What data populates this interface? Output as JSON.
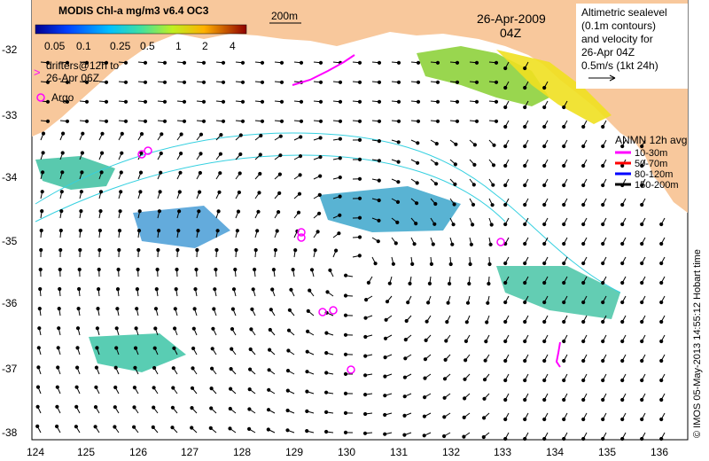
{
  "colorbar": {
    "title": "MODIS Chl-a mg/m3 v6.4 OC3",
    "ticks": [
      "0.05",
      "0.1",
      "0.25",
      "0.5",
      "1",
      "2",
      "4"
    ]
  },
  "legend_top_left": {
    "drifters_line1": "drifters@12h to",
    "drifters_line2": "26-Apr 06Z",
    "argo_label": "Argo",
    "depth_contour_label": "200m"
  },
  "timestamp": {
    "date": "26-Apr-2009",
    "time": "04Z"
  },
  "altimetry_note": {
    "line1": "Altimetric sealevel",
    "line2": "(0.1m contours)",
    "line3": "and velocity for",
    "line4": "26-Apr 04Z",
    "line5": "0.5m/s (1kt 24h)"
  },
  "anmn_legend": {
    "title": "ANMN 12h avg",
    "items": [
      {
        "label": "10-30m",
        "color": "#ff00ff"
      },
      {
        "label": "50-70m",
        "color": "#ff0000"
      },
      {
        "label": "80-120m",
        "color": "#0000ff"
      },
      {
        "label": "150-200m",
        "color": "#000000"
      }
    ]
  },
  "credit": "© IMOS 05-May-2013 14:55:12 Hobart time",
  "axes": {
    "x_ticks": [
      "124",
      "125",
      "126",
      "127",
      "128",
      "129",
      "130",
      "131",
      "132",
      "133",
      "134",
      "135",
      "136"
    ],
    "y_ticks": [
      "-32",
      "-33",
      "-34",
      "-35",
      "-36",
      "-37",
      "-38"
    ]
  },
  "colors": {
    "land": "#f8c89c",
    "ocean": "#ffffff",
    "chl_low": "#1f5bff",
    "chl_mid": "#2fc0a0",
    "chl_high": "#ffd200"
  }
}
